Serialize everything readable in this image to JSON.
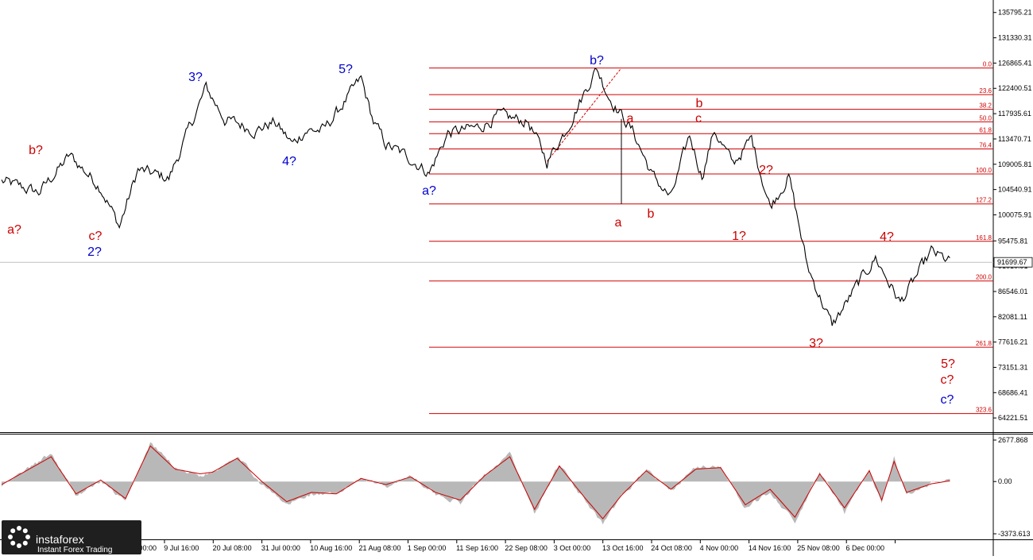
{
  "chart_data": [
    {
      "type": "line",
      "title": "",
      "ylim": [
        62000,
        138000
      ],
      "x_tick_labels": [
        "29 Jun 00:00",
        "9 Jul 16:00",
        "20 Jul 08:00",
        "31 Jul 00:00",
        "10 Aug 16:00",
        "21 Aug 08:00",
        "1 Sep 00:00",
        "11 Sep 16:00",
        "22 Sep 08:00",
        "3 Oct 00:00",
        "13 Oct 16:00",
        "24 Oct 08:00",
        "4 Nov 00:00",
        "14 Nov 16:00",
        "25 Nov 08:00",
        "6 Dec 00:00"
      ],
      "y_tick_labels": [
        "135795.21",
        "131330.31",
        "126865.41",
        "122400.51",
        "117935.61",
        "113470.71",
        "109005.81",
        "104540.91",
        "100075.91",
        "95475.81",
        "91010.91",
        "86546.01",
        "82081.11",
        "77616.21",
        "73151.31",
        "68686.41",
        "64221.51"
      ],
      "y_ticks": [
        135795.21,
        131330.31,
        126865.41,
        122400.51,
        117935.61,
        113470.71,
        109005.81,
        104540.91,
        100075.91,
        95475.81,
        91010.91,
        86546.01,
        82081.11,
        77616.21,
        73151.31,
        68686.41,
        64221.51
      ],
      "current_price": 91699.67,
      "current_price_label": "91699.67",
      "series": [
        {
          "color": "#000000",
          "x_index": [
            0,
            6,
            11,
            16,
            19,
            22,
            27,
            33,
            36,
            41,
            44,
            47,
            49,
            52,
            58,
            60,
            62,
            66,
            69,
            72,
            77,
            80,
            85,
            88,
            91,
            96,
            98,
            102,
            105,
            108,
            111,
            113,
            115,
            118,
            121,
            124,
            127,
            130,
            134,
            138,
            141,
            145,
            150,
            153
          ],
          "y": [
            106000,
            104000,
            110500,
            105000,
            98000,
            108000,
            106500,
            122500,
            117000,
            115000,
            116500,
            112500,
            115000,
            115000,
            124000,
            116500,
            112500,
            110000,
            107500,
            114500,
            115500,
            117500,
            116500,
            109500,
            115000,
            126000,
            121000,
            114500,
            107000,
            103000,
            114000,
            107000,
            115000,
            109000,
            113500,
            101500,
            107000,
            91000,
            80500,
            87500,
            92500,
            84500,
            93500,
            91700
          ]
        }
      ],
      "fib_levels": [
        {
          "label": "0.0",
          "value": 126000
        },
        {
          "label": "23.6",
          "value": 121300
        },
        {
          "label": "38.2",
          "value": 118700
        },
        {
          "label": "50.0",
          "value": 116500
        },
        {
          "label": "61.8",
          "value": 114400
        },
        {
          "label": "76.4",
          "value": 111700
        },
        {
          "label": "100.0",
          "value": 107300
        },
        {
          "label": "127.2",
          "value": 102000
        },
        {
          "label": "161.8",
          "value": 95400
        },
        {
          "label": "200.0",
          "value": 88400
        },
        {
          "label": "261.8",
          "value": 76700
        },
        {
          "label": "323.6",
          "value": 65000
        }
      ],
      "fib_color": "#d00000",
      "wave_labels": [
        {
          "text": "a?",
          "color": "#cc0000"
        },
        {
          "text": "b?",
          "color": "#cc0000"
        },
        {
          "text": "c?",
          "color": "#cc0000"
        },
        {
          "text": "2?",
          "color": "#0000cc"
        },
        {
          "text": "3?",
          "color": "#0000cc"
        },
        {
          "text": "4?",
          "color": "#0000cc"
        },
        {
          "text": "5?",
          "color": "#0000cc"
        },
        {
          "text": "a?",
          "color": "#0000cc"
        },
        {
          "text": "b?",
          "color": "#0000cc"
        },
        {
          "text": "a",
          "color": "#cc0000"
        },
        {
          "text": "a",
          "color": "#cc0000"
        },
        {
          "text": "b",
          "color": "#cc0000"
        },
        {
          "text": "c",
          "color": "#cc0000"
        },
        {
          "text": "b",
          "color": "#cc0000"
        },
        {
          "text": "1?",
          "color": "#cc0000"
        },
        {
          "text": "2?",
          "color": "#cc0000"
        },
        {
          "text": "3?",
          "color": "#cc0000"
        },
        {
          "text": "4?",
          "color": "#cc0000"
        },
        {
          "text": "5?",
          "color": "#cc0000"
        },
        {
          "text": "c?",
          "color": "#cc0000"
        },
        {
          "text": "c?",
          "color": "#0000cc"
        }
      ]
    },
    {
      "type": "area",
      "title": "",
      "ylim": [
        -3373.613,
        2677.868
      ],
      "y_tick_labels": [
        "2677.868",
        "0.00",
        "-3373.613"
      ],
      "y_ticks": [
        2677.868,
        0,
        -3373.613
      ],
      "series": [
        {
          "type": "area",
          "color": "#b8b8b8",
          "x_index": [
            0,
            8,
            12,
            16,
            20,
            24,
            28,
            32,
            34,
            38,
            42,
            46,
            50,
            54,
            58,
            62,
            66,
            70,
            74,
            78,
            82,
            86,
            90,
            94,
            97,
            100,
            104,
            108,
            112,
            116,
            120,
            124,
            128,
            132,
            136,
            140,
            142,
            144,
            146,
            150,
            153
          ],
          "y": [
            -300,
            1800,
            -900,
            0,
            -1300,
            2500,
            900,
            400,
            600,
            1700,
            -200,
            -1500,
            -800,
            -900,
            300,
            -300,
            400,
            -800,
            -1400,
            500,
            1800,
            -2100,
            1200,
            -1200,
            -2800,
            -1000,
            800,
            -600,
            900,
            1000,
            -1800,
            -600,
            -2700,
            600,
            -2000,
            800,
            -1400,
            1500,
            -900,
            -200,
            100
          ]
        },
        {
          "type": "line",
          "color": "#cc0000",
          "x_index": [
            0,
            8,
            12,
            16,
            20,
            24,
            28,
            32,
            34,
            38,
            42,
            46,
            50,
            54,
            58,
            62,
            66,
            70,
            74,
            78,
            82,
            86,
            90,
            94,
            97,
            100,
            104,
            108,
            112,
            116,
            120,
            124,
            128,
            132,
            136,
            140,
            142,
            144,
            146,
            150,
            153
          ],
          "y": [
            -200,
            1600,
            -800,
            100,
            -1100,
            2300,
            800,
            500,
            600,
            1500,
            0,
            -1300,
            -700,
            -800,
            200,
            -200,
            300,
            -700,
            -1200,
            400,
            1600,
            -1800,
            1000,
            -1000,
            -2400,
            -900,
            700,
            -500,
            800,
            900,
            -1500,
            -500,
            -2300,
            500,
            -1700,
            700,
            -1200,
            1300,
            -700,
            -150,
            50
          ]
        }
      ]
    }
  ],
  "logo": {
    "brand": "instaforex",
    "tagline": "Instant Forex Trading"
  }
}
